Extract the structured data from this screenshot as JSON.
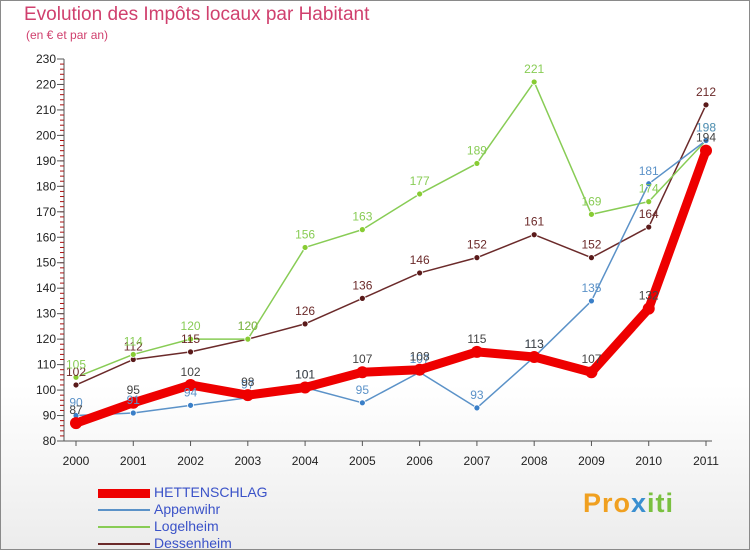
{
  "chart_data": {
    "type": "line",
    "title": "Evolution des Impôts locaux par Habitant",
    "subtitle": "(en € et par an)",
    "xlabel": "",
    "ylabel": "",
    "categories": [
      "2000",
      "2001",
      "2002",
      "2003",
      "2004",
      "2005",
      "2006",
      "2007",
      "2008",
      "2009",
      "2010",
      "2011"
    ],
    "ylim": [
      80,
      230
    ],
    "yticks": [
      80,
      90,
      100,
      110,
      120,
      130,
      140,
      150,
      160,
      170,
      180,
      190,
      200,
      210,
      220,
      230
    ],
    "grid": false,
    "legend_position": "bottom-left",
    "series": [
      {
        "name": "HETTENSCHLAG",
        "color": "#ee0000",
        "values": [
          87,
          95,
          102,
          98,
          101,
          107,
          108,
          115,
          113,
          107,
          132,
          194
        ]
      },
      {
        "name": "Appenwihr",
        "color": "#5b92c8",
        "values": [
          90,
          91,
          94,
          97,
          101,
          95,
          107,
          93,
          113,
          135,
          181,
          198
        ]
      },
      {
        "name": "Logelheim",
        "color": "#88cc55",
        "values": [
          105,
          114,
          120,
          120,
          156,
          163,
          177,
          189,
          221,
          169,
          174,
          198
        ]
      },
      {
        "name": "Dessenheim",
        "color": "#6b2a2a",
        "values": [
          102,
          112,
          115,
          120,
          126,
          136,
          146,
          152,
          161,
          152,
          164,
          212
        ]
      }
    ]
  },
  "logo": {
    "p1": "Pro",
    "p2": "x",
    "p3": "iti"
  }
}
